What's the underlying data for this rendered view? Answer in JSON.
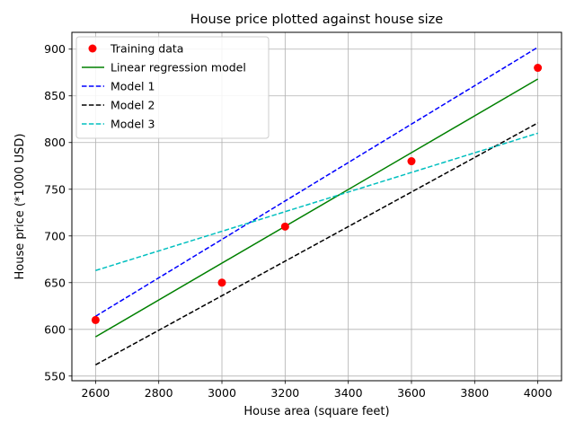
{
  "chart_data": {
    "type": "line",
    "title": "House price plotted against house size",
    "xlabel": "House area (square feet)",
    "ylabel": "House price (*1000 USD)",
    "xlim": [
      2525,
      4075
    ],
    "ylim": [
      545,
      918
    ],
    "xticks": [
      2600,
      2800,
      3000,
      3200,
      3400,
      3600,
      3800,
      4000
    ],
    "yticks": [
      550,
      600,
      650,
      700,
      750,
      800,
      850,
      900
    ],
    "grid": true,
    "legend_position": "top-left",
    "training_data": {
      "name": "Training data",
      "color": "#ff0000",
      "x": [
        2600,
        3000,
        3200,
        3600,
        4000
      ],
      "y": [
        610,
        650,
        710,
        780,
        880
      ]
    },
    "series": [
      {
        "name": "Linear regression model",
        "color": "#008000",
        "dash": "solid",
        "x": [
          2600,
          4000
        ],
        "y": [
          592,
          868
        ]
      },
      {
        "name": "Model 1",
        "color": "#0000ff",
        "dash": "dashed",
        "x": [
          2600,
          4000
        ],
        "y": [
          614,
          902
        ]
      },
      {
        "name": "Model 2",
        "color": "#000000",
        "dash": "dashed",
        "x": [
          2600,
          4000
        ],
        "y": [
          562,
          821
        ]
      },
      {
        "name": "Model 3",
        "color": "#00bfbf",
        "dash": "dashed",
        "x": [
          2600,
          4000
        ],
        "y": [
          663,
          810
        ]
      }
    ]
  }
}
